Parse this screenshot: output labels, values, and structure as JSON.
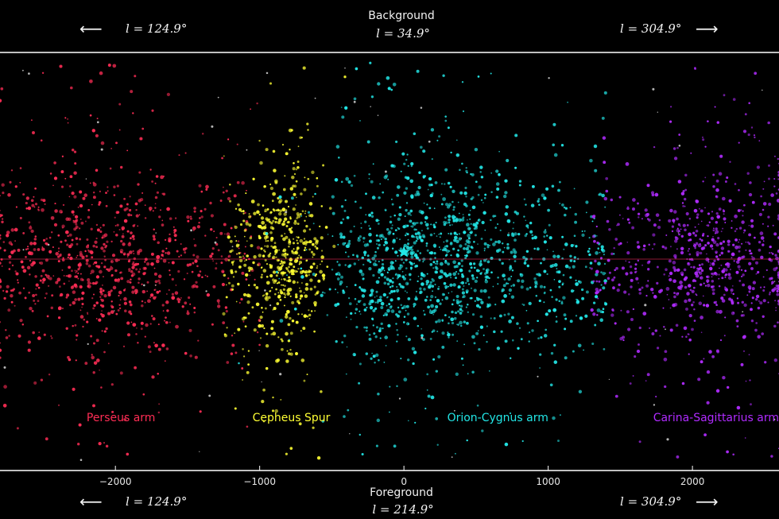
{
  "header": {
    "center_title": "Background",
    "center_value": "l = 34.9°",
    "left_value": "l = 124.9°",
    "right_value": "l = 304.9°",
    "left_arrow": "⟵",
    "right_arrow": "⟶"
  },
  "footer": {
    "center_title": "Foreground",
    "center_value": "l = 214.9°",
    "left_value": "l = 124.9°",
    "right_value": "l = 304.9°",
    "left_arrow": "⟵",
    "right_arrow": "⟶"
  },
  "chart_data": {
    "type": "scatter",
    "xlim": [
      -2800,
      2600
    ],
    "ylim": [
      -1,
      1
    ],
    "x_ticks": [
      -2000,
      -1000,
      0,
      1000,
      2000
    ],
    "x_tick_labels": [
      "−2000",
      "−1000",
      "0",
      "1000",
      "2000"
    ],
    "grid": false,
    "background": "#000000",
    "series": [
      {
        "name": "Perseus arm",
        "color": "#ff2d55",
        "x_range": [
          -2800,
          -1000
        ],
        "density_peak": -2100,
        "count": 900
      },
      {
        "name": "Cepheus Spur",
        "color": "#ffff33",
        "x_range": [
          -1250,
          -550
        ],
        "density_peak": -850,
        "count": 550
      },
      {
        "name": "Orion-Cygnus arm",
        "color": "#22e6e6",
        "x_range": [
          -500,
          1400
        ],
        "density_peak": 200,
        "count": 1300
      },
      {
        "name": "Carina-Sagittarius arm",
        "color": "#b02bff",
        "x_range": [
          1300,
          2600
        ],
        "density_peak": 2200,
        "count": 700
      }
    ],
    "annotations": [
      {
        "text": "Perseus arm",
        "x": -2200,
        "color": "#ff2d55"
      },
      {
        "text": "Cepheus Spur",
        "x": -1050,
        "color": "#ffff33"
      },
      {
        "text": "Orion-Cygnus arm",
        "x": 300,
        "color": "#22e6e6"
      },
      {
        "text": "Carina-Sagittarius arm",
        "x": 2050,
        "color": "#b02bff"
      }
    ],
    "sun_marker": {
      "x": 0,
      "y": 0,
      "color": "#22e6e6"
    }
  }
}
